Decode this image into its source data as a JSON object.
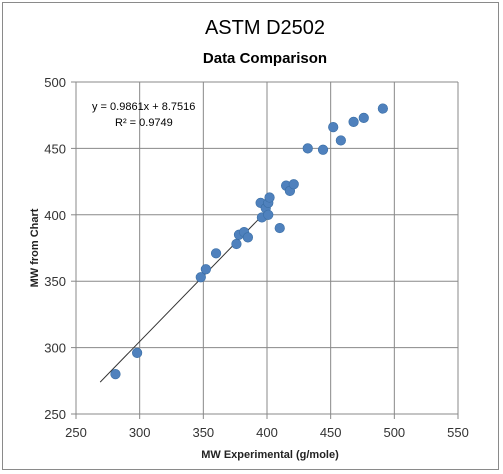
{
  "chart_data": {
    "type": "scatter",
    "title": "ASTM D2502",
    "subtitle": "Data Comparison",
    "xlabel": "MW Experimental (g/mole)",
    "ylabel": "MW from Chart",
    "xlim": [
      250,
      550
    ],
    "ylim": [
      250,
      500
    ],
    "xticks": [
      250,
      300,
      350,
      400,
      450,
      500,
      550
    ],
    "yticks": [
      250,
      300,
      350,
      400,
      450,
      500
    ],
    "grid": true,
    "marker_color": "#4f81bd",
    "trendline": {
      "slope": 0.9861,
      "intercept": 8.7516,
      "x_range": [
        269,
        394
      ],
      "equation": "y = 0.9861x + 8.7516",
      "r_squared": "R² = 0.9749"
    },
    "points": [
      {
        "x": 281,
        "y": 280
      },
      {
        "x": 298,
        "y": 296
      },
      {
        "x": 348,
        "y": 353
      },
      {
        "x": 352,
        "y": 359
      },
      {
        "x": 360,
        "y": 371
      },
      {
        "x": 376,
        "y": 378
      },
      {
        "x": 378,
        "y": 385
      },
      {
        "x": 382,
        "y": 387
      },
      {
        "x": 385,
        "y": 383
      },
      {
        "x": 395,
        "y": 409
      },
      {
        "x": 396,
        "y": 398
      },
      {
        "x": 399,
        "y": 405
      },
      {
        "x": 401,
        "y": 400
      },
      {
        "x": 401,
        "y": 409
      },
      {
        "x": 402,
        "y": 413
      },
      {
        "x": 410,
        "y": 390
      },
      {
        "x": 415,
        "y": 422
      },
      {
        "x": 418,
        "y": 418
      },
      {
        "x": 421,
        "y": 423
      },
      {
        "x": 432,
        "y": 450
      },
      {
        "x": 444,
        "y": 449
      },
      {
        "x": 452,
        "y": 466
      },
      {
        "x": 458,
        "y": 456
      },
      {
        "x": 468,
        "y": 470
      },
      {
        "x": 476,
        "y": 473
      },
      {
        "x": 491,
        "y": 480
      }
    ]
  }
}
